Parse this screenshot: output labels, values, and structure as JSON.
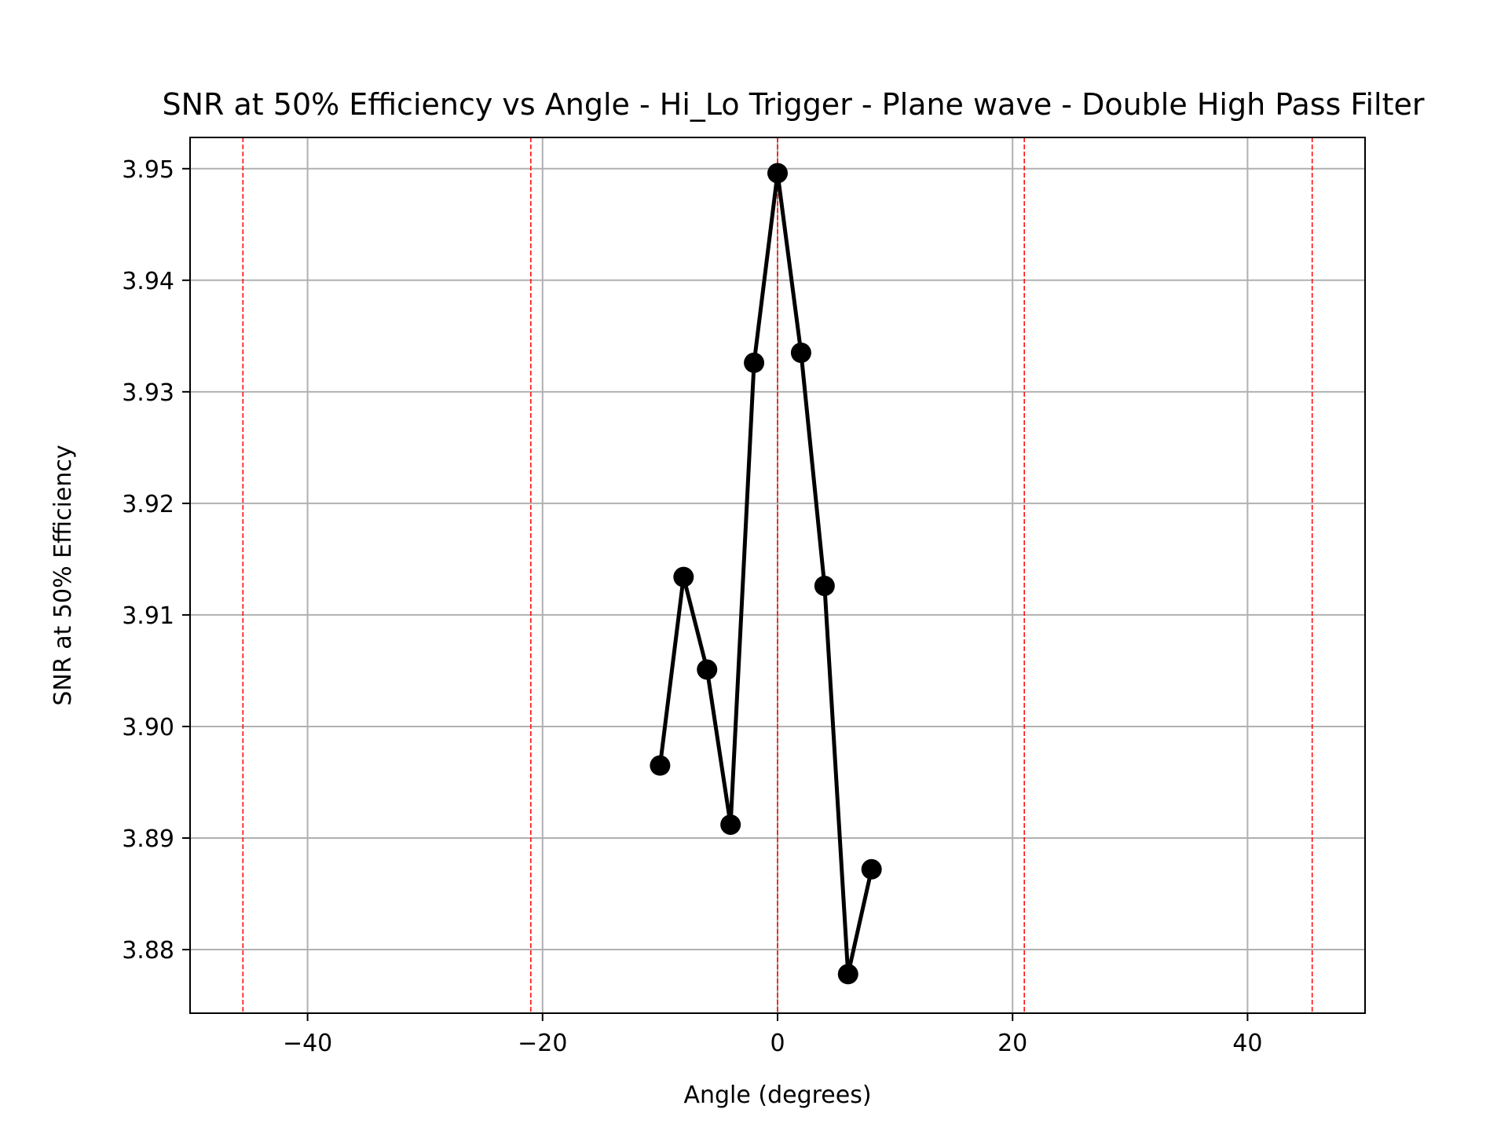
{
  "chart_data": {
    "type": "line",
    "title": "SNR at 50% Efficiency vs Angle - Hi_Lo Trigger - Plane wave - Double High Pass Filter",
    "xlabel": "Angle (degrees)",
    "ylabel": "SNR at 50% Efficiency",
    "xlim": [
      -50,
      50
    ],
    "ylim": [
      3.8743,
      3.9528
    ],
    "xticks": [
      -40,
      -20,
      0,
      20,
      40
    ],
    "xtick_labels": [
      "−40",
      "−20",
      "0",
      "20",
      "40"
    ],
    "yticks": [
      3.88,
      3.89,
      3.9,
      3.91,
      3.92,
      3.93,
      3.94,
      3.95
    ],
    "ytick_labels": [
      "3.88",
      "3.89",
      "3.90",
      "3.91",
      "3.92",
      "3.93",
      "3.94",
      "3.95"
    ],
    "grid": true,
    "series": [
      {
        "color": "#000000",
        "marker": "circle",
        "x": [
          -10,
          -8,
          -6,
          -4,
          -2,
          0,
          2,
          4,
          6,
          8
        ],
        "y": [
          3.8965,
          3.9134,
          3.9051,
          3.8912,
          3.9326,
          3.9496,
          3.9335,
          3.9126,
          3.8778,
          3.8872
        ]
      }
    ],
    "reference_lines": {
      "orientation": "vertical",
      "color": "#ff0000",
      "style": "dashed",
      "x": [
        -45.5,
        -21,
        0,
        21,
        45.5
      ]
    }
  }
}
